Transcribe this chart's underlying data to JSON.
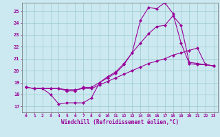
{
  "xlabel": "Windchill (Refroidissement éolien,°C)",
  "bg_color": "#cce8f0",
  "line_color": "#990099",
  "grid_color": "#99cccc",
  "xlim": [
    -0.5,
    23.5
  ],
  "ylim": [
    16.5,
    25.7
  ],
  "yticks": [
    17,
    18,
    19,
    20,
    21,
    22,
    23,
    24,
    25
  ],
  "xticks": [
    0,
    1,
    2,
    3,
    4,
    5,
    6,
    7,
    8,
    9,
    10,
    11,
    12,
    13,
    14,
    15,
    16,
    17,
    18,
    19,
    20,
    21,
    22,
    23
  ],
  "line1_x": [
    0,
    1,
    2,
    3,
    4,
    5,
    6,
    7,
    8,
    9,
    10,
    11,
    12,
    13,
    14,
    15,
    16,
    17,
    18,
    19,
    20,
    21,
    22,
    23
  ],
  "line1_y": [
    18.6,
    18.5,
    18.5,
    18.0,
    17.2,
    17.3,
    17.3,
    17.3,
    17.7,
    19.0,
    19.5,
    19.9,
    20.6,
    21.5,
    22.3,
    23.1,
    23.7,
    23.8,
    24.6,
    23.8,
    20.7,
    20.6,
    20.5,
    20.4
  ],
  "line2_x": [
    0,
    1,
    2,
    3,
    4,
    5,
    6,
    7,
    8,
    9,
    10,
    11,
    12,
    13,
    14,
    15,
    16,
    17,
    18,
    19,
    20,
    21,
    22,
    23
  ],
  "line2_y": [
    18.6,
    18.5,
    18.5,
    18.5,
    18.5,
    18.3,
    18.3,
    18.6,
    18.6,
    19.0,
    19.4,
    19.8,
    20.5,
    21.5,
    24.2,
    25.3,
    25.2,
    25.7,
    24.8,
    22.3,
    20.6,
    20.5,
    20.5,
    20.4
  ],
  "line3_x": [
    0,
    1,
    2,
    3,
    4,
    5,
    6,
    7,
    8,
    9,
    10,
    11,
    12,
    13,
    14,
    15,
    16,
    17,
    18,
    19,
    20,
    21,
    22,
    23
  ],
  "line3_y": [
    18.6,
    18.5,
    18.5,
    18.5,
    18.5,
    18.4,
    18.4,
    18.5,
    18.5,
    18.8,
    19.1,
    19.4,
    19.7,
    20.0,
    20.3,
    20.6,
    20.8,
    21.0,
    21.3,
    21.5,
    21.7,
    21.9,
    20.5,
    20.4
  ]
}
